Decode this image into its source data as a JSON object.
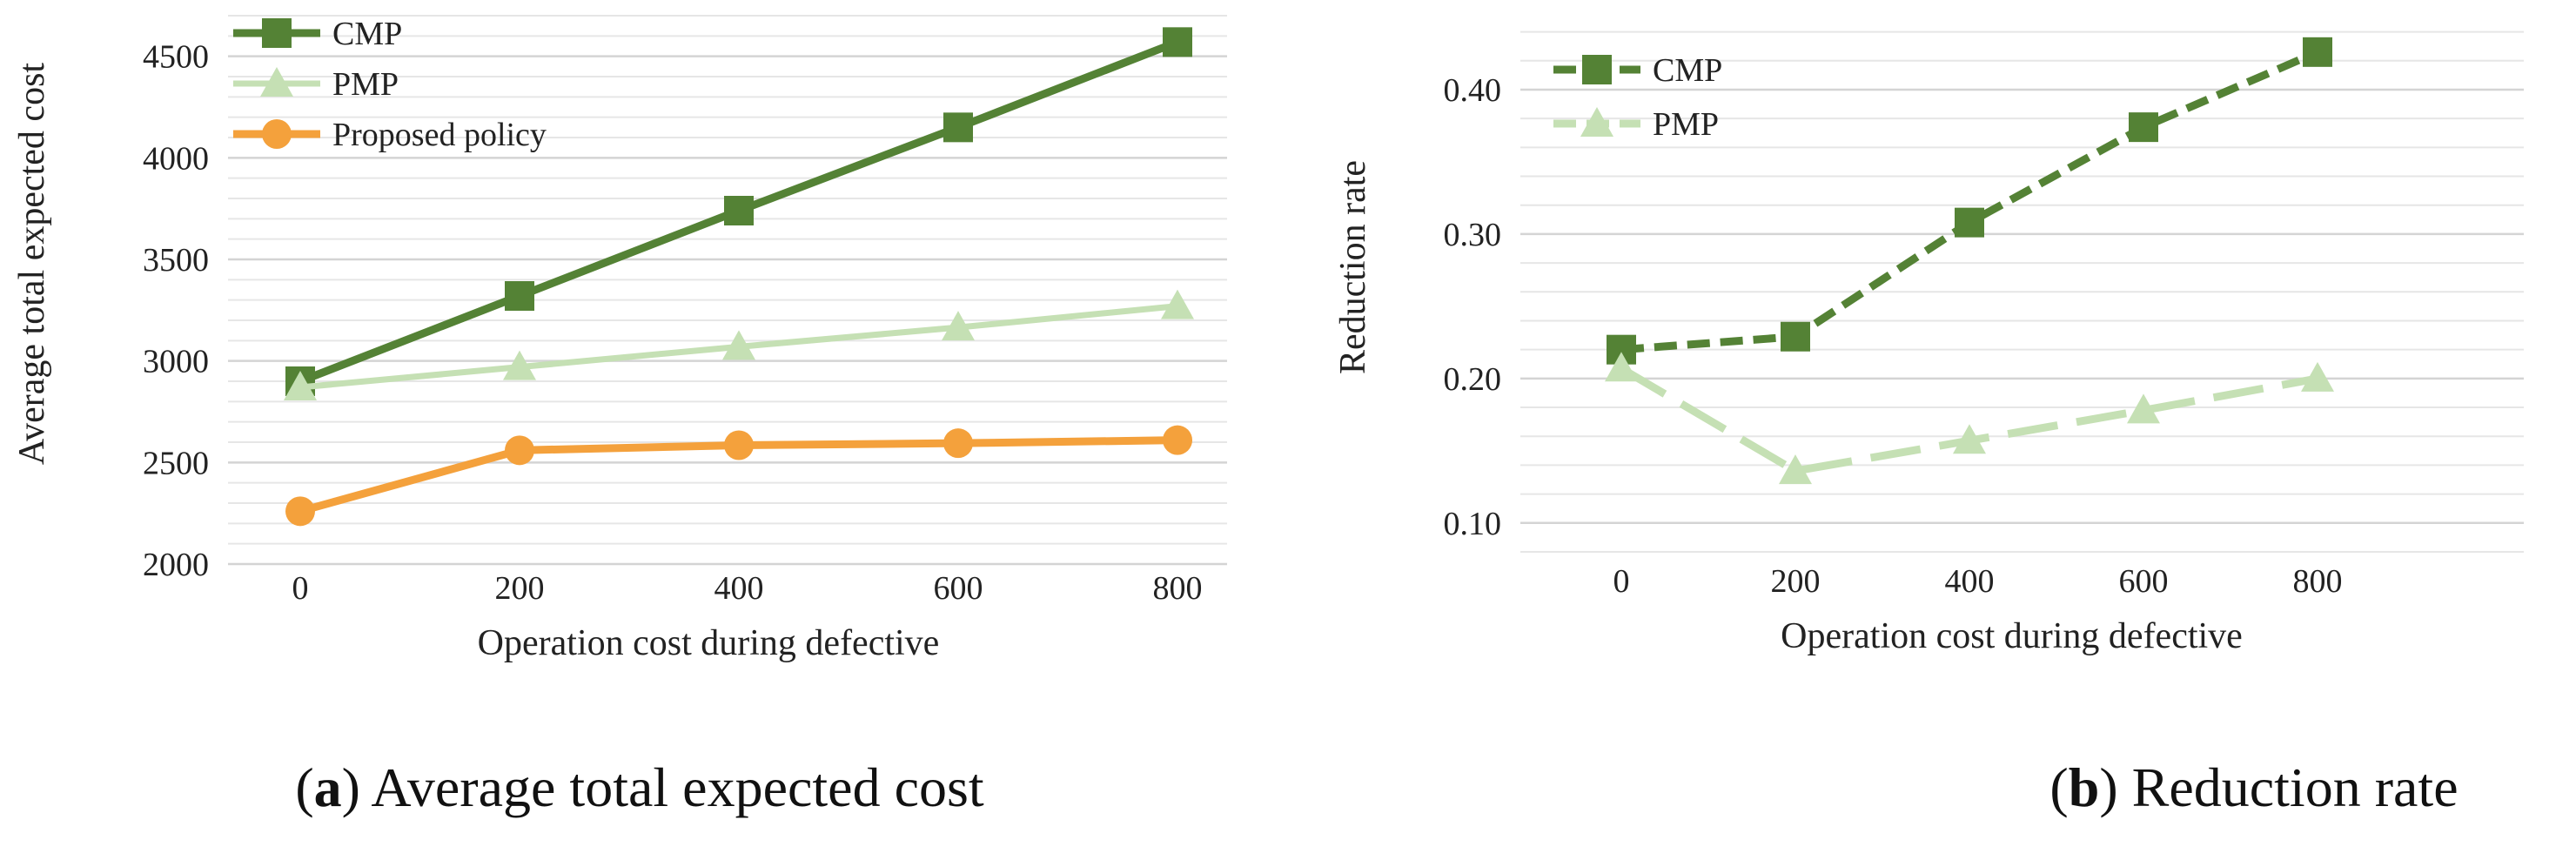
{
  "chart_data": [
    {
      "type": "line",
      "title": "",
      "xlabel": "Operation cost during defective",
      "ylabel": "Average total expected cost",
      "categories": [
        "0",
        "200",
        "400",
        "600",
        "800"
      ],
      "ylim": [
        2000,
        4700
      ],
      "yticks": [
        "2000",
        "2500",
        "3000",
        "3500",
        "4000",
        "4500"
      ],
      "ytick_values": [
        2000,
        2500,
        3000,
        3500,
        4000,
        4500
      ],
      "grid": true,
      "legend": "top-left",
      "series": [
        {
          "name": "CMP",
          "values": [
            2900,
            3320,
            3740,
            4150,
            4570
          ],
          "color": "#548235",
          "marker": "square",
          "dash": "solid",
          "width": 9
        },
        {
          "name": "PMP",
          "values": [
            2870,
            2970,
            3070,
            3165,
            3270
          ],
          "color": "#c5e0b4",
          "marker": "triangle",
          "dash": "solid",
          "width": 7
        },
        {
          "name": "Proposed policy",
          "values": [
            2260,
            2560,
            2585,
            2595,
            2610
          ],
          "color": "#f4a13c",
          "marker": "circle",
          "dash": "solid",
          "width": 9
        }
      ],
      "caption_letter": "a",
      "caption_text": " Average total expected cost"
    },
    {
      "type": "line",
      "title": "",
      "xlabel": "Operation cost during defective",
      "ylabel": "Reduction rate",
      "categories": [
        "0",
        "200",
        "400",
        "600",
        "800"
      ],
      "ylim": [
        0.08,
        0.45
      ],
      "yticks": [
        "0.10",
        "0.20",
        "0.30",
        "0.40"
      ],
      "ytick_values": [
        0.1,
        0.2,
        0.3,
        0.4
      ],
      "grid": true,
      "legend": "top-left",
      "series": [
        {
          "name": "CMP",
          "values": [
            0.22,
            0.229,
            0.308,
            0.374,
            0.426
          ],
          "color": "#548235",
          "marker": "square",
          "dash": "short",
          "width": 9
        },
        {
          "name": "PMP",
          "values": [
            0.207,
            0.136,
            0.157,
            0.178,
            0.2
          ],
          "color": "#c5e0b4",
          "marker": "triangle",
          "dash": "long",
          "width": 9
        }
      ],
      "caption_letter": "b",
      "caption_text": " Reduction rate"
    }
  ]
}
